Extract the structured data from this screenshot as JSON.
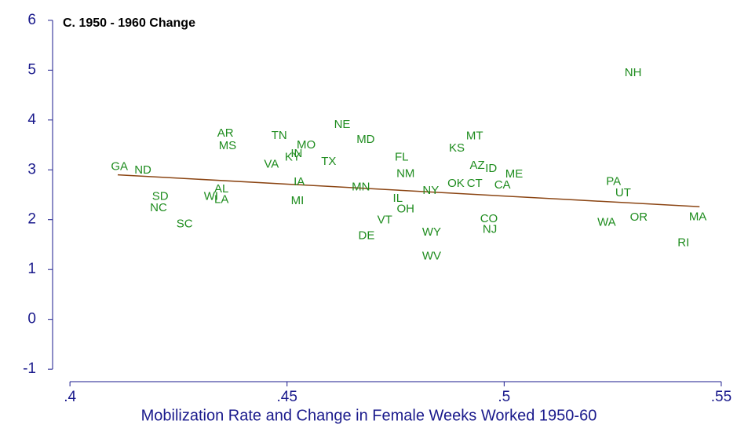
{
  "chart_data": {
    "type": "scatter",
    "title": "C. 1950 - 1960 Change",
    "x_label": "Mobilization Rate and Change in Female Weeks Worked 1950-60",
    "xlim": [
      0.396,
      0.552
    ],
    "ylim": [
      -1.25,
      6.25
    ],
    "xticks": [
      {
        "value": 0.4,
        "label": ".4"
      },
      {
        "value": 0.45,
        "label": ".45"
      },
      {
        "value": 0.5,
        "label": ".5"
      },
      {
        "value": 0.55,
        "label": ".55"
      }
    ],
    "yticks": [
      -1,
      0,
      1,
      2,
      3,
      4,
      5,
      6
    ],
    "series": [
      {
        "color": "#1e8c1e",
        "labels": [
          "GA",
          "ND",
          "SD",
          "NC",
          "SC",
          "AR",
          "MS",
          "WI",
          "AL",
          "LA",
          "TN",
          "MO",
          "IN",
          "KY",
          "VA",
          "TX",
          "IA",
          "MI",
          "NE",
          "MD",
          "MN",
          "FL",
          "NM",
          "IL",
          "NY",
          "OH",
          "VT",
          "DE",
          "WY",
          "WV",
          "MT",
          "KS",
          "AZ",
          "ID",
          "ME",
          "OK",
          "CT",
          "CA",
          "CO",
          "NJ",
          "NH",
          "PA",
          "UT",
          "WA",
          "OR",
          "MA",
          "RI"
        ],
        "x": [
          0.4114,
          0.4168,
          0.4208,
          0.4204,
          0.4264,
          0.4358,
          0.4363,
          0.4325,
          0.4349,
          0.4349,
          0.4482,
          0.4544,
          0.4522,
          0.4513,
          0.4464,
          0.4596,
          0.4528,
          0.4524,
          0.4627,
          0.4681,
          0.467,
          0.4764,
          0.4773,
          0.4755,
          0.4831,
          0.4773,
          0.4725,
          0.4683,
          0.4833,
          0.4833,
          0.4932,
          0.4891,
          0.4938,
          0.497,
          0.5023,
          0.4889,
          0.4932,
          0.4996,
          0.4965,
          0.4967,
          0.5297,
          0.5252,
          0.5274,
          0.5236,
          0.531,
          0.5446,
          0.5413
        ],
        "y": [
          3.06,
          2.99,
          2.46,
          2.23,
          1.91,
          3.73,
          3.48,
          2.46,
          2.61,
          2.4,
          3.68,
          3.49,
          3.32,
          3.25,
          3.11,
          3.16,
          2.75,
          2.37,
          3.9,
          3.6,
          2.65,
          3.25,
          2.92,
          2.42,
          2.58,
          2.21,
          1.99,
          1.67,
          1.74,
          1.26,
          3.67,
          3.43,
          3.08,
          3.02,
          2.91,
          2.72,
          2.72,
          2.69,
          2.01,
          1.8,
          4.94,
          2.76,
          2.53,
          1.94,
          2.04,
          2.05,
          1.53
        ]
      }
    ],
    "fit_line": {
      "color": "#8b4513",
      "x": [
        0.411,
        0.545
      ],
      "y": [
        2.9,
        2.26
      ]
    }
  }
}
